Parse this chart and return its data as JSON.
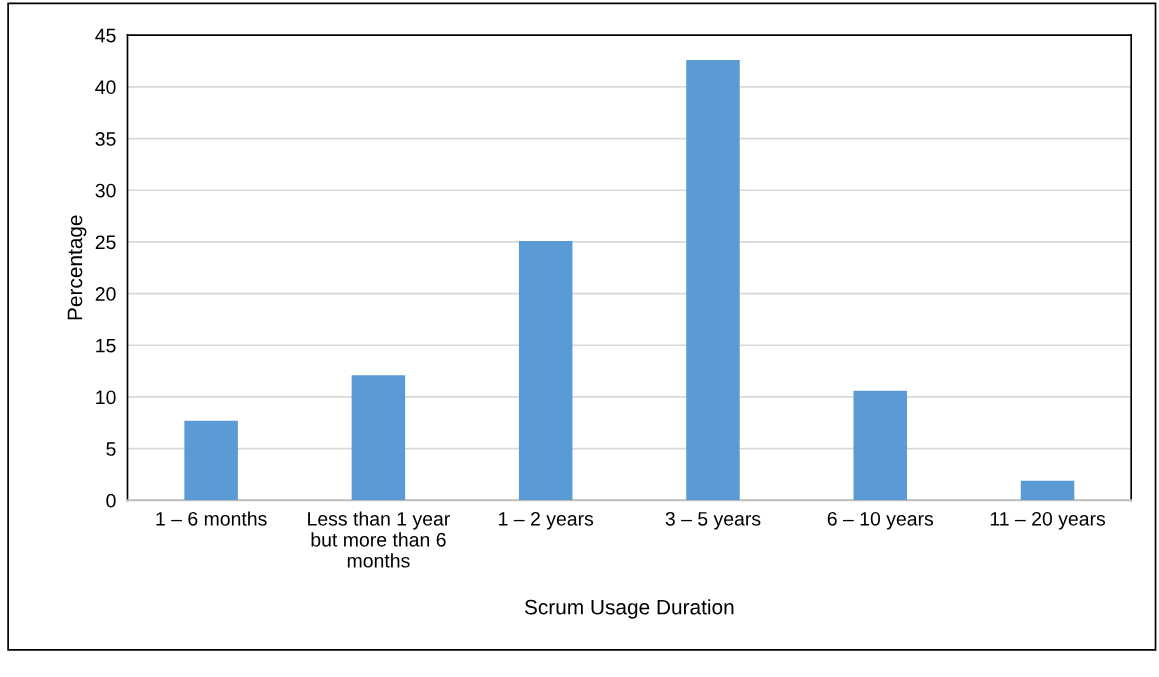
{
  "chart_data": {
    "type": "bar",
    "xlabel": "Scrum Usage Duration",
    "ylabel": "Percentage",
    "categories": [
      "1 – 6 months",
      "Less than 1 year\nbut more than 6\nmonths",
      "1 – 2 years",
      "3 – 5 years",
      "6 – 10 years",
      "11 – 20 years"
    ],
    "values": [
      7.7,
      12.1,
      25.1,
      42.6,
      10.6,
      1.9
    ],
    "color": "#5b9bd5",
    "ylim": [
      0,
      45
    ],
    "yticks": [
      0,
      5,
      10,
      15,
      20,
      25,
      30,
      35,
      40,
      45
    ],
    "grid": "y"
  }
}
